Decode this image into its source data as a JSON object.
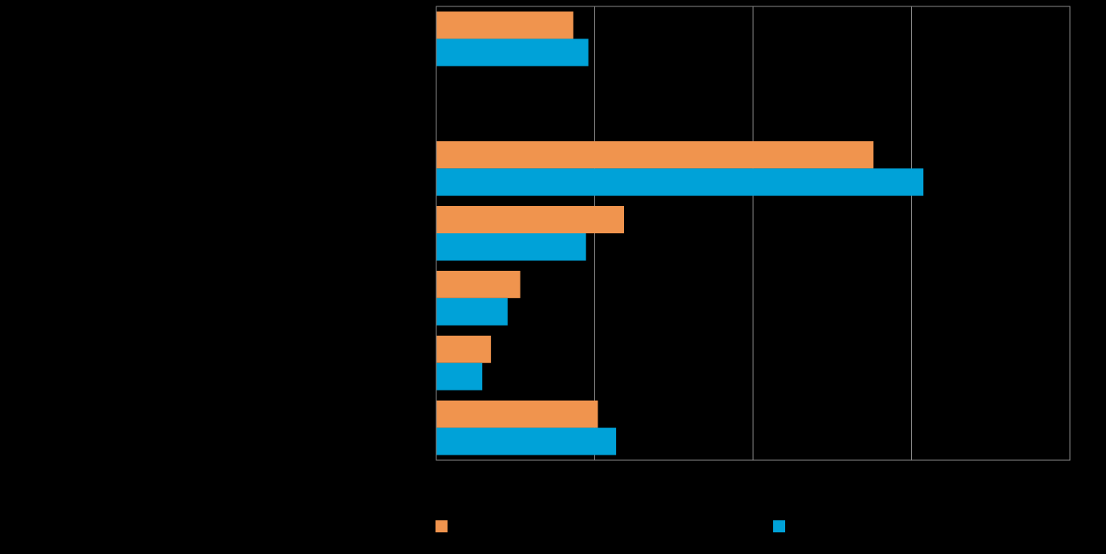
{
  "chart_data": {
    "type": "bar",
    "orientation": "horizontal",
    "title": "",
    "xlabel": "",
    "ylabel": "",
    "categories": [
      "",
      "",
      "",
      "",
      "",
      "",
      ""
    ],
    "series": [
      {
        "name": "",
        "color": "#F0944E",
        "values": [
          17.3,
          0,
          55.2,
          23.7,
          10.6,
          6.9,
          20.4
        ]
      },
      {
        "name": "",
        "color": "#00A2D8",
        "values": [
          19.2,
          0,
          61.5,
          18.9,
          9.0,
          5.8,
          22.7
        ]
      }
    ],
    "xlim": [
      0,
      80
    ],
    "xticks": [
      0,
      20,
      40,
      60,
      80
    ],
    "grid": true,
    "legend_position": "bottom",
    "background": "#000000",
    "gridline_color": "#888888"
  }
}
